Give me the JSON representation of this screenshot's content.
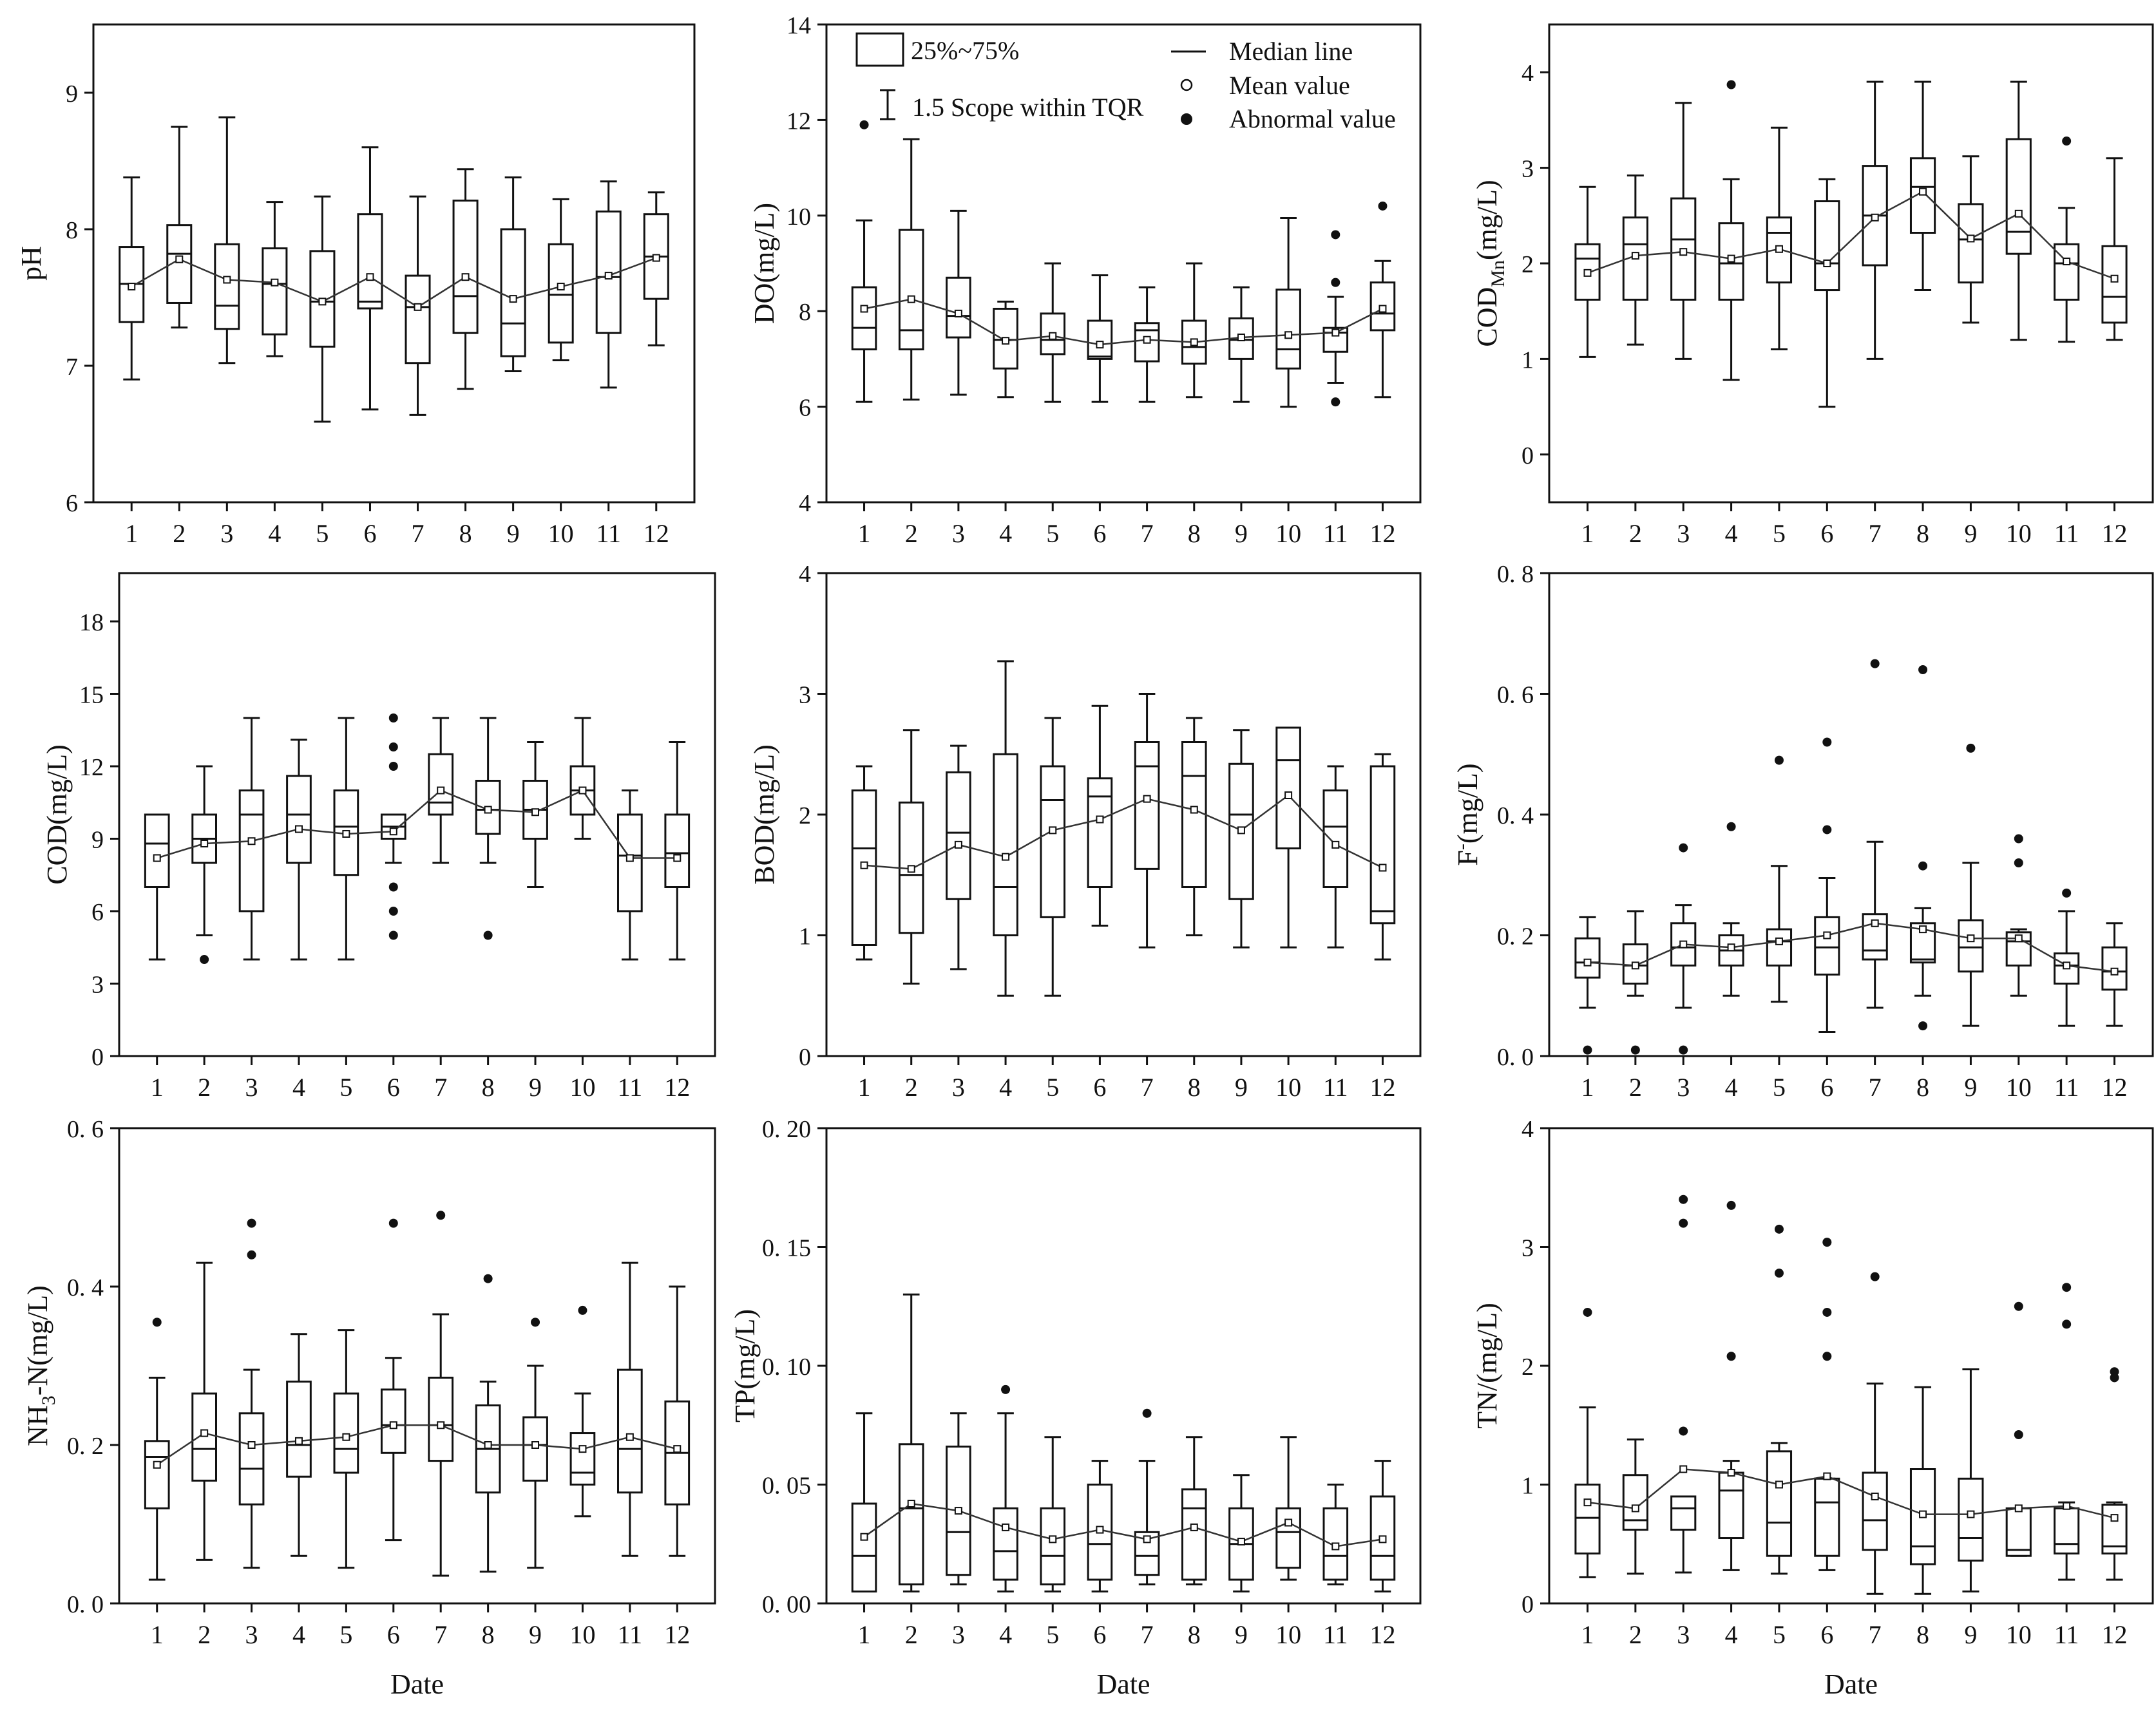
{
  "legend": {
    "box": "25%~75%",
    "whisker": "1.5 Scope within TQR",
    "median": "Median line",
    "mean": "Mean value",
    "outlier": "Abnormal value"
  },
  "chart_data": [
    {
      "id": "ph",
      "type": "box",
      "ylabel": "pH",
      "xlabel": "",
      "ylim": [
        6,
        9.5
      ],
      "yticks": [
        6,
        7,
        8,
        9
      ],
      "yfmt": 0,
      "categories": [
        1,
        2,
        3,
        4,
        5,
        6,
        7,
        8,
        9,
        10,
        11,
        12
      ],
      "whisker_low": [
        6.9,
        7.28,
        7.02,
        7.07,
        6.59,
        6.68,
        6.64,
        6.83,
        6.96,
        7.04,
        6.84,
        7.15
      ],
      "q1": [
        7.32,
        7.46,
        7.27,
        7.23,
        7.14,
        7.42,
        7.02,
        7.24,
        7.07,
        7.17,
        7.24,
        7.49
      ],
      "median": [
        7.6,
        7.82,
        7.44,
        7.6,
        7.47,
        7.47,
        7.43,
        7.51,
        7.31,
        7.52,
        7.65,
        7.8
      ],
      "q3": [
        7.87,
        8.03,
        7.89,
        7.86,
        7.84,
        8.11,
        7.66,
        8.21,
        8.0,
        7.89,
        8.13,
        8.11
      ],
      "whisker_high": [
        8.38,
        8.75,
        8.82,
        8.2,
        8.24,
        8.6,
        8.24,
        8.44,
        8.38,
        8.22,
        8.35,
        8.27
      ],
      "mean": [
        7.58,
        7.78,
        7.63,
        7.61,
        7.47,
        7.65,
        7.43,
        7.65,
        7.49,
        7.58,
        7.66,
        7.79
      ],
      "outliers": []
    },
    {
      "id": "do",
      "type": "box",
      "ylabel": "DO(mg/L)",
      "xlabel": "",
      "ylim": [
        4,
        14
      ],
      "yticks": [
        4,
        6,
        8,
        10,
        12,
        14
      ],
      "yfmt": 0,
      "categories": [
        1,
        2,
        3,
        4,
        5,
        6,
        7,
        8,
        9,
        10,
        11,
        12
      ],
      "whisker_low": [
        6.1,
        6.15,
        6.25,
        6.2,
        6.1,
        6.1,
        6.1,
        6.2,
        6.1,
        6.0,
        6.5,
        6.2
      ],
      "q1": [
        7.2,
        7.2,
        7.45,
        6.8,
        7.1,
        7.0,
        6.95,
        6.9,
        7.0,
        6.8,
        7.15,
        7.6
      ],
      "median": [
        7.65,
        7.6,
        7.9,
        7.4,
        7.4,
        7.05,
        7.6,
        7.25,
        7.4,
        7.2,
        7.55,
        7.95
      ],
      "q3": [
        8.5,
        9.7,
        8.7,
        8.05,
        7.95,
        7.8,
        7.75,
        7.8,
        7.85,
        8.45,
        7.65,
        8.6
      ],
      "whisker_high": [
        9.9,
        11.6,
        10.1,
        8.2,
        9.0,
        8.75,
        8.5,
        9.0,
        8.5,
        9.95,
        8.3,
        9.05
      ],
      "mean": [
        8.05,
        8.25,
        7.95,
        7.38,
        7.48,
        7.3,
        7.4,
        7.35,
        7.45,
        7.5,
        7.55,
        8.05
      ],
      "outliers": [
        [
          1,
          11.9
        ],
        [
          11,
          9.6
        ],
        [
          11,
          8.6
        ],
        [
          11,
          6.1
        ],
        [
          12,
          10.2
        ]
      ]
    },
    {
      "id": "codmn",
      "type": "box",
      "ylabel": "COD",
      "ylabel_sub": "Mn",
      "ylabel_suffix": "(mg/L)",
      "xlabel": "",
      "ylim": [
        -0.5,
        4.5
      ],
      "yticks": [
        0,
        1,
        2,
        3,
        4
      ],
      "yfmt": 0,
      "categories": [
        1,
        2,
        3,
        4,
        5,
        6,
        7,
        8,
        9,
        10,
        11,
        12
      ],
      "whisker_low": [
        1.02,
        1.15,
        1.0,
        0.78,
        1.1,
        0.5,
        1.0,
        1.72,
        1.38,
        1.2,
        1.18,
        1.2
      ],
      "q1": [
        1.62,
        1.62,
        1.62,
        1.62,
        1.8,
        1.72,
        1.98,
        2.32,
        1.8,
        2.1,
        1.62,
        1.38
      ],
      "median": [
        2.05,
        2.2,
        2.25,
        2.0,
        2.32,
        2.0,
        2.5,
        2.8,
        2.25,
        2.33,
        2.0,
        1.65
      ],
      "q3": [
        2.2,
        2.48,
        2.68,
        2.42,
        2.48,
        2.65,
        3.02,
        3.1,
        2.62,
        3.3,
        2.2,
        2.18
      ],
      "whisker_high": [
        2.8,
        2.92,
        3.68,
        2.88,
        3.42,
        2.88,
        3.9,
        3.9,
        3.12,
        3.9,
        2.58,
        3.1
      ],
      "mean": [
        1.9,
        2.08,
        2.12,
        2.05,
        2.15,
        2.0,
        2.48,
        2.75,
        2.26,
        2.52,
        2.02,
        1.84
      ],
      "outliers": [
        [
          4,
          3.87
        ],
        [
          11,
          3.28
        ]
      ]
    },
    {
      "id": "cod",
      "type": "box",
      "ylabel": "COD(mg/L)",
      "xlabel": "",
      "ylim": [
        0,
        20
      ],
      "yticks": [
        0,
        3,
        6,
        9,
        12,
        15,
        18
      ],
      "yfmt": 0,
      "categories": [
        1,
        2,
        3,
        4,
        5,
        6,
        7,
        8,
        9,
        10,
        11,
        12
      ],
      "whisker_low": [
        4.0,
        5.0,
        4.0,
        4.0,
        4.0,
        8.0,
        8.0,
        8.0,
        7.0,
        9.0,
        4.0,
        4.0
      ],
      "q1": [
        7.0,
        8.0,
        6.0,
        8.0,
        7.5,
        9.0,
        10.0,
        9.2,
        9.0,
        10.0,
        6.0,
        7.0
      ],
      "median": [
        8.8,
        9.0,
        10.0,
        10.0,
        9.5,
        9.5,
        10.5,
        10.2,
        10.2,
        11.0,
        8.3,
        8.4
      ],
      "q3": [
        10.0,
        10.0,
        11.0,
        11.6,
        11.0,
        10.0,
        12.5,
        11.4,
        11.4,
        12.0,
        10.0,
        10.0
      ],
      "whisker_high": [
        10.0,
        12.0,
        14.0,
        13.1,
        14.0,
        10.0,
        14.0,
        14.0,
        13.0,
        14.0,
        11.0,
        13.0
      ],
      "mean": [
        8.2,
        8.8,
        8.9,
        9.4,
        9.2,
        9.3,
        11.0,
        10.2,
        10.1,
        11.0,
        8.2,
        8.2
      ],
      "outliers": [
        [
          2,
          4.0
        ],
        [
          6,
          14.0
        ],
        [
          6,
          12.8
        ],
        [
          6,
          12.0
        ],
        [
          6,
          7.0
        ],
        [
          6,
          6.0
        ],
        [
          6,
          5.0
        ],
        [
          8,
          5.0
        ]
      ]
    },
    {
      "id": "bod",
      "type": "box",
      "ylabel": "BOD(mg/L)",
      "xlabel": "",
      "ylim": [
        0,
        4
      ],
      "yticks": [
        0,
        1,
        2,
        3,
        4
      ],
      "yfmt": 0,
      "categories": [
        1,
        2,
        3,
        4,
        5,
        6,
        7,
        8,
        9,
        10,
        11,
        12
      ],
      "whisker_low": [
        0.8,
        0.6,
        0.72,
        0.5,
        0.5,
        1.08,
        0.9,
        1.0,
        0.9,
        0.9,
        0.9,
        0.8
      ],
      "q1": [
        0.92,
        1.02,
        1.3,
        1.0,
        1.15,
        1.4,
        1.55,
        1.4,
        1.3,
        1.72,
        1.4,
        1.1
      ],
      "median": [
        1.72,
        1.5,
        1.85,
        1.4,
        2.12,
        2.15,
        2.4,
        2.32,
        2.0,
        2.45,
        1.9,
        1.2
      ],
      "q3": [
        2.2,
        2.1,
        2.35,
        2.5,
        2.4,
        2.3,
        2.6,
        2.6,
        2.42,
        2.72,
        2.2,
        2.4
      ],
      "whisker_high": [
        2.4,
        2.7,
        2.57,
        3.27,
        2.8,
        2.9,
        3.0,
        2.8,
        2.7,
        2.72,
        2.4,
        2.5
      ],
      "mean": [
        1.58,
        1.55,
        1.75,
        1.65,
        1.87,
        1.96,
        2.13,
        2.04,
        1.87,
        2.16,
        1.75,
        1.56
      ],
      "outliers": []
    },
    {
      "id": "f",
      "type": "box",
      "ylabel": "F",
      "ylabel_sup": "-",
      "ylabel_suffix": "(mg/L)",
      "xlabel": "",
      "ylim": [
        0,
        0.8
      ],
      "yticks": [
        0,
        0.2,
        0.4,
        0.6,
        0.8
      ],
      "yfmt": 1,
      "categories": [
        1,
        2,
        3,
        4,
        5,
        6,
        7,
        8,
        9,
        10,
        11,
        12
      ],
      "whisker_low": [
        0.08,
        0.1,
        0.08,
        0.1,
        0.09,
        0.04,
        0.08,
        0.1,
        0.05,
        0.1,
        0.05,
        0.05
      ],
      "q1": [
        0.13,
        0.12,
        0.15,
        0.15,
        0.15,
        0.135,
        0.16,
        0.155,
        0.14,
        0.15,
        0.12,
        0.11
      ],
      "median": [
        0.155,
        0.15,
        0.18,
        0.175,
        0.19,
        0.18,
        0.175,
        0.16,
        0.18,
        0.19,
        0.15,
        0.14
      ],
      "q3": [
        0.195,
        0.185,
        0.22,
        0.2,
        0.21,
        0.23,
        0.235,
        0.22,
        0.225,
        0.205,
        0.17,
        0.18
      ],
      "whisker_high": [
        0.23,
        0.24,
        0.25,
        0.22,
        0.315,
        0.295,
        0.355,
        0.245,
        0.32,
        0.21,
        0.24,
        0.22
      ],
      "mean": [
        0.155,
        0.15,
        0.185,
        0.18,
        0.19,
        0.2,
        0.22,
        0.21,
        0.195,
        0.195,
        0.15,
        0.14
      ],
      "outliers": [
        [
          1,
          0.01
        ],
        [
          2,
          0.01
        ],
        [
          3,
          0.01
        ],
        [
          3,
          0.345
        ],
        [
          4,
          0.38
        ],
        [
          5,
          0.49
        ],
        [
          6,
          0.52
        ],
        [
          6,
          0.375
        ],
        [
          7,
          0.65
        ],
        [
          8,
          0.64
        ],
        [
          8,
          0.315
        ],
        [
          8,
          0.05
        ],
        [
          9,
          0.51
        ],
        [
          10,
          0.36
        ],
        [
          10,
          0.32
        ],
        [
          11,
          0.27
        ]
      ]
    },
    {
      "id": "nh3n",
      "type": "box",
      "ylabel": "NH",
      "ylabel_sub": "3",
      "ylabel_suffix": "-N(mg/L)",
      "xlabel": "Date",
      "ylim": [
        0,
        0.6
      ],
      "yticks": [
        0,
        0.2,
        0.4,
        0.6
      ],
      "yfmt": 1,
      "categories": [
        1,
        2,
        3,
        4,
        5,
        6,
        7,
        8,
        9,
        10,
        11,
        12
      ],
      "whisker_low": [
        0.03,
        0.055,
        0.045,
        0.06,
        0.045,
        0.08,
        0.035,
        0.04,
        0.045,
        0.11,
        0.06,
        0.06
      ],
      "q1": [
        0.12,
        0.155,
        0.125,
        0.16,
        0.165,
        0.19,
        0.18,
        0.14,
        0.155,
        0.15,
        0.14,
        0.125
      ],
      "median": [
        0.185,
        0.195,
        0.17,
        0.2,
        0.195,
        0.225,
        0.225,
        0.195,
        0.2,
        0.165,
        0.195,
        0.19
      ],
      "q3": [
        0.205,
        0.265,
        0.24,
        0.28,
        0.265,
        0.27,
        0.285,
        0.25,
        0.235,
        0.215,
        0.295,
        0.255
      ],
      "whisker_high": [
        0.285,
        0.43,
        0.295,
        0.34,
        0.345,
        0.31,
        0.365,
        0.28,
        0.3,
        0.265,
        0.43,
        0.4
      ],
      "mean": [
        0.175,
        0.215,
        0.2,
        0.205,
        0.21,
        0.225,
        0.225,
        0.2,
        0.2,
        0.195,
        0.21,
        0.195
      ],
      "outliers": [
        [
          1,
          0.355
        ],
        [
          3,
          0.48
        ],
        [
          3,
          0.44
        ],
        [
          6,
          0.48
        ],
        [
          7,
          0.49
        ],
        [
          8,
          0.41
        ],
        [
          9,
          0.355
        ],
        [
          10,
          0.37
        ]
      ]
    },
    {
      "id": "tp",
      "type": "box",
      "ylabel": "TP(mg/L)",
      "xlabel": "Date",
      "ylim": [
        0,
        0.2
      ],
      "yticks": [
        0,
        0.05,
        0.1,
        0.15,
        0.2
      ],
      "yfmt": 2,
      "categories": [
        1,
        2,
        3,
        4,
        5,
        6,
        7,
        8,
        9,
        10,
        11,
        12
      ],
      "whisker_low": [
        0.005,
        0.005,
        0.008,
        0.005,
        0.005,
        0.005,
        0.008,
        0.008,
        0.005,
        0.01,
        0.008,
        0.005
      ],
      "q1": [
        0.005,
        0.008,
        0.012,
        0.01,
        0.008,
        0.01,
        0.012,
        0.01,
        0.01,
        0.015,
        0.01,
        0.01
      ],
      "median": [
        0.02,
        0.04,
        0.03,
        0.022,
        0.02,
        0.025,
        0.02,
        0.04,
        0.025,
        0.03,
        0.02,
        0.02
      ],
      "q3": [
        0.042,
        0.067,
        0.066,
        0.04,
        0.04,
        0.05,
        0.03,
        0.048,
        0.04,
        0.04,
        0.04,
        0.045
      ],
      "whisker_high": [
        0.08,
        0.13,
        0.08,
        0.08,
        0.07,
        0.06,
        0.06,
        0.07,
        0.054,
        0.07,
        0.05,
        0.06
      ],
      "mean": [
        0.028,
        0.042,
        0.039,
        0.032,
        0.027,
        0.031,
        0.027,
        0.032,
        0.026,
        0.034,
        0.024,
        0.027
      ],
      "outliers": [
        [
          4,
          0.09
        ],
        [
          7,
          0.08
        ]
      ]
    },
    {
      "id": "tn",
      "type": "box",
      "ylabel": "TN/(mg/L)",
      "xlabel": "Date",
      "ylim": [
        0,
        4
      ],
      "yticks": [
        0,
        1,
        2,
        3,
        4
      ],
      "yfmt": 0,
      "categories": [
        1,
        2,
        3,
        4,
        5,
        6,
        7,
        8,
        9,
        10,
        11,
        12
      ],
      "whisker_low": [
        0.22,
        0.25,
        0.26,
        0.28,
        0.25,
        0.28,
        0.08,
        0.08,
        0.1,
        0.4,
        0.2,
        0.2
      ],
      "q1": [
        0.42,
        0.62,
        0.62,
        0.55,
        0.4,
        0.4,
        0.45,
        0.33,
        0.36,
        0.4,
        0.42,
        0.42
      ],
      "median": [
        0.72,
        0.7,
        0.8,
        0.95,
        0.68,
        0.85,
        0.7,
        0.48,
        0.55,
        0.45,
        0.5,
        0.48
      ],
      "q3": [
        1.0,
        1.08,
        0.9,
        1.1,
        1.28,
        1.05,
        1.1,
        1.13,
        1.05,
        0.8,
        0.8,
        0.83
      ],
      "whisker_high": [
        1.65,
        1.38,
        0.9,
        1.2,
        1.35,
        1.05,
        1.85,
        1.82,
        1.97,
        0.8,
        0.85,
        0.85
      ],
      "mean": [
        0.85,
        0.8,
        1.13,
        1.1,
        1.0,
        1.07,
        0.9,
        0.75,
        0.75,
        0.8,
        0.82,
        0.72
      ],
      "outliers": [
        [
          1,
          2.45
        ],
        [
          3,
          3.4
        ],
        [
          3,
          3.2
        ],
        [
          3,
          1.45
        ],
        [
          4,
          3.35
        ],
        [
          4,
          2.08
        ],
        [
          5,
          3.15
        ],
        [
          5,
          2.78
        ],
        [
          6,
          3.04
        ],
        [
          6,
          2.45
        ],
        [
          6,
          2.08
        ],
        [
          7,
          2.75
        ],
        [
          10,
          2.5
        ],
        [
          10,
          1.42
        ],
        [
          11,
          2.66
        ],
        [
          11,
          2.35
        ],
        [
          12,
          1.95
        ],
        [
          12,
          1.9
        ]
      ]
    }
  ]
}
